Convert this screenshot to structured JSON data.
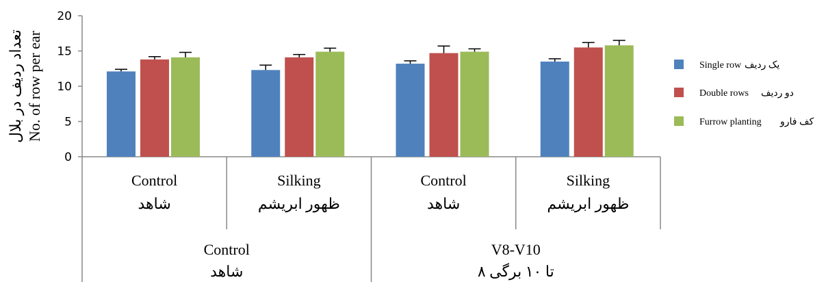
{
  "chart_data": {
    "type": "bar",
    "ylabel_fa": "تعداد ردیف در بلال",
    "ylabel_en": "No. of row per ear",
    "ylim": [
      0,
      20
    ],
    "yticks": [
      "0",
      "5",
      "10",
      "15",
      "20"
    ],
    "categories": [
      {
        "en": "Control",
        "fa": "شاهد"
      },
      {
        "en": "Silking",
        "fa": "ظهور ابریشم"
      },
      {
        "en": "Control",
        "fa": "شاهد"
      },
      {
        "en": "Silking",
        "fa": "ظهور ابریشم"
      }
    ],
    "groups": [
      {
        "en": "Control",
        "fa": "شاهد"
      },
      {
        "en": "V8-V10",
        "fa": "۸ تا ۱۰ برگی"
      }
    ],
    "series": [
      {
        "name_en": "Single row",
        "name_fa": "یک ردیف",
        "color": "#4f81bd",
        "values": [
          12.1,
          12.3,
          13.2,
          13.5
        ],
        "errors": [
          0.3,
          0.7,
          0.4,
          0.4
        ]
      },
      {
        "name_en": "Double rows",
        "name_fa": "دو ردیف",
        "color": "#c0504d",
        "values": [
          13.8,
          14.1,
          14.7,
          15.5
        ],
        "errors": [
          0.4,
          0.4,
          1.0,
          0.7
        ]
      },
      {
        "name_en": "Furrow planting",
        "name_fa": "کف فارو",
        "color": "#9bbb59",
        "values": [
          14.1,
          14.9,
          14.9,
          15.8
        ],
        "errors": [
          0.7,
          0.5,
          0.4,
          0.7
        ]
      }
    ],
    "legend_position": "right",
    "grid": false
  }
}
